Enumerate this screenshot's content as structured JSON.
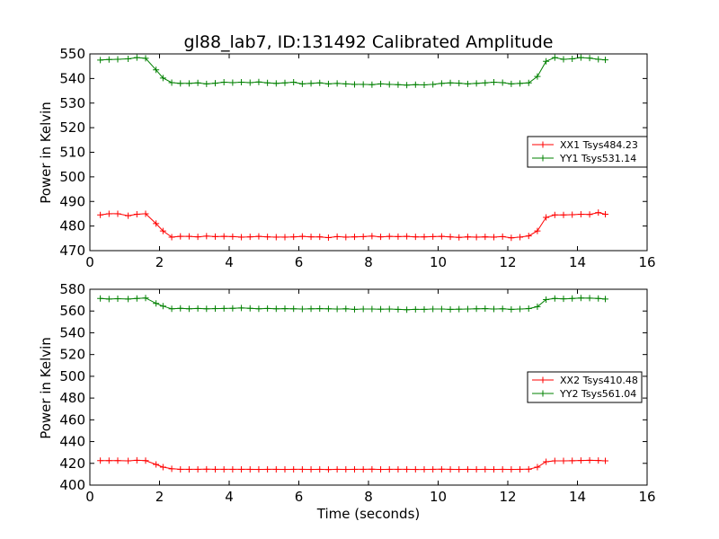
{
  "title": "gl88_lab7, ID:131492 Calibrated Amplitude",
  "chart_data": [
    {
      "type": "line",
      "title": "gl88_lab7, ID:131492 Calibrated Amplitude",
      "xlabel": "",
      "ylabel": "Power in Kelvin",
      "xlim": [
        0,
        16
      ],
      "ylim": [
        470,
        550
      ],
      "xticks": [
        0,
        2,
        4,
        6,
        8,
        10,
        12,
        14,
        16
      ],
      "yticks": [
        470,
        480,
        490,
        500,
        510,
        520,
        530,
        540,
        550
      ],
      "grid": false,
      "legend_position": "right",
      "series": [
        {
          "name": "XX1 Tsys484.23",
          "color": "#ff0000",
          "x": [
            0.3,
            0.55,
            0.8,
            1.1,
            1.35,
            1.6,
            1.9,
            2.1,
            2.35,
            2.6,
            2.85,
            3.1,
            3.35,
            3.6,
            3.85,
            4.1,
            4.35,
            4.6,
            4.85,
            5.1,
            5.35,
            5.6,
            5.85,
            6.1,
            6.35,
            6.6,
            6.85,
            7.1,
            7.35,
            7.6,
            7.85,
            8.1,
            8.35,
            8.6,
            8.85,
            9.1,
            9.35,
            9.6,
            9.85,
            10.1,
            10.35,
            10.6,
            10.85,
            11.1,
            11.35,
            11.6,
            11.85,
            12.1,
            12.35,
            12.6,
            12.85,
            13.1,
            13.35,
            13.6,
            13.85,
            14.1,
            14.35,
            14.6,
            14.8
          ],
          "values": [
            484.5,
            485.0,
            485.0,
            484.2,
            484.8,
            485.0,
            481.0,
            478.0,
            475.5,
            475.8,
            475.8,
            475.6,
            475.9,
            475.7,
            475.8,
            475.7,
            475.5,
            475.6,
            475.8,
            475.6,
            475.5,
            475.5,
            475.6,
            475.8,
            475.6,
            475.6,
            475.3,
            475.7,
            475.5,
            475.6,
            475.7,
            475.9,
            475.6,
            475.8,
            475.7,
            475.8,
            475.6,
            475.6,
            475.7,
            475.8,
            475.6,
            475.4,
            475.6,
            475.5,
            475.6,
            475.5,
            475.7,
            475.2,
            475.5,
            476.0,
            478.0,
            483.5,
            484.5,
            484.5,
            484.6,
            484.8,
            484.7,
            485.5,
            484.8
          ]
        },
        {
          "name": "YY1 Tsys531.14",
          "color": "#008000",
          "x": [
            0.3,
            0.55,
            0.8,
            1.1,
            1.35,
            1.6,
            1.9,
            2.1,
            2.35,
            2.6,
            2.85,
            3.1,
            3.35,
            3.6,
            3.85,
            4.1,
            4.35,
            4.6,
            4.85,
            5.1,
            5.35,
            5.6,
            5.85,
            6.1,
            6.35,
            6.6,
            6.85,
            7.1,
            7.35,
            7.6,
            7.85,
            8.1,
            8.35,
            8.6,
            8.85,
            9.1,
            9.35,
            9.6,
            9.85,
            10.1,
            10.35,
            10.6,
            10.85,
            11.1,
            11.35,
            11.6,
            11.85,
            12.1,
            12.35,
            12.6,
            12.85,
            13.1,
            13.35,
            13.6,
            13.85,
            14.1,
            14.35,
            14.6,
            14.8
          ],
          "values": [
            547.5,
            547.7,
            547.8,
            548.0,
            548.5,
            548.2,
            543.5,
            540.2,
            538.3,
            538.0,
            538.0,
            538.2,
            537.8,
            538.1,
            538.5,
            538.3,
            538.5,
            538.3,
            538.6,
            538.2,
            538.0,
            538.2,
            538.5,
            537.8,
            538.0,
            538.2,
            537.8,
            538.0,
            537.8,
            537.6,
            537.6,
            537.5,
            537.8,
            537.6,
            537.5,
            537.3,
            537.5,
            537.4,
            537.6,
            538.0,
            538.2,
            538.1,
            537.8,
            538.0,
            538.2,
            538.5,
            538.3,
            537.8,
            538.0,
            538.2,
            540.8,
            547.0,
            548.5,
            547.8,
            548.0,
            548.5,
            548.3,
            547.8,
            547.6
          ]
        }
      ]
    },
    {
      "type": "line",
      "title": "",
      "xlabel": "Time (seconds)",
      "ylabel": "Power in Kelvin",
      "xlim": [
        0,
        16
      ],
      "ylim": [
        400,
        580
      ],
      "xticks": [
        0,
        2,
        4,
        6,
        8,
        10,
        12,
        14,
        16
      ],
      "yticks": [
        400,
        420,
        440,
        460,
        480,
        500,
        520,
        540,
        560,
        580
      ],
      "grid": false,
      "legend_position": "right",
      "series": [
        {
          "name": "XX2 Tsys410.48",
          "color": "#ff0000",
          "x": [
            0.3,
            0.55,
            0.8,
            1.1,
            1.35,
            1.6,
            1.9,
            2.1,
            2.35,
            2.6,
            2.85,
            3.1,
            3.35,
            3.6,
            3.85,
            4.1,
            4.35,
            4.6,
            4.85,
            5.1,
            5.35,
            5.6,
            5.85,
            6.1,
            6.35,
            6.6,
            6.85,
            7.1,
            7.35,
            7.6,
            7.85,
            8.1,
            8.35,
            8.6,
            8.85,
            9.1,
            9.35,
            9.6,
            9.85,
            10.1,
            10.35,
            10.6,
            10.85,
            11.1,
            11.35,
            11.6,
            11.85,
            12.1,
            12.35,
            12.6,
            12.85,
            13.1,
            13.35,
            13.6,
            13.85,
            14.1,
            14.35,
            14.6,
            14.8
          ],
          "values": [
            422.5,
            422.5,
            422.5,
            422.3,
            422.8,
            422.5,
            419.0,
            416.5,
            415.0,
            414.5,
            414.5,
            414.5,
            414.6,
            414.5,
            414.5,
            414.5,
            414.5,
            414.5,
            414.4,
            414.5,
            414.5,
            414.4,
            414.5,
            414.5,
            414.4,
            414.5,
            414.3,
            414.5,
            414.4,
            414.5,
            414.5,
            414.6,
            414.4,
            414.5,
            414.5,
            414.5,
            414.4,
            414.4,
            414.5,
            414.6,
            414.5,
            414.4,
            414.5,
            414.4,
            414.5,
            414.4,
            414.5,
            414.4,
            414.5,
            414.6,
            416.5,
            421.5,
            422.3,
            422.3,
            422.4,
            422.6,
            422.8,
            422.6,
            422.3
          ]
        },
        {
          "name": "YY2 Tsys561.04",
          "color": "#008000",
          "x": [
            0.3,
            0.55,
            0.8,
            1.1,
            1.35,
            1.6,
            1.9,
            2.1,
            2.35,
            2.6,
            2.85,
            3.1,
            3.35,
            3.6,
            3.85,
            4.1,
            4.35,
            4.6,
            4.85,
            5.1,
            5.35,
            5.6,
            5.85,
            6.1,
            6.35,
            6.6,
            6.85,
            7.1,
            7.35,
            7.6,
            7.85,
            8.1,
            8.35,
            8.6,
            8.85,
            9.1,
            9.35,
            9.6,
            9.85,
            10.1,
            10.35,
            10.6,
            10.85,
            11.1,
            11.35,
            11.6,
            11.85,
            12.1,
            12.35,
            12.6,
            12.85,
            13.1,
            13.35,
            13.6,
            13.85,
            14.1,
            14.35,
            14.6,
            14.8
          ],
          "values": [
            571.5,
            571.0,
            571.3,
            571.0,
            571.5,
            572.0,
            567.0,
            564.5,
            562.0,
            562.5,
            562.0,
            562.3,
            562.0,
            562.2,
            562.3,
            562.5,
            562.8,
            562.5,
            562.0,
            562.3,
            562.0,
            562.2,
            562.0,
            561.8,
            562.0,
            562.2,
            562.0,
            561.8,
            562.0,
            561.5,
            561.8,
            561.8,
            561.7,
            561.8,
            561.5,
            561.2,
            561.5,
            561.5,
            561.8,
            561.8,
            561.5,
            561.7,
            561.8,
            562.0,
            562.2,
            561.8,
            562.0,
            561.5,
            561.8,
            562.2,
            564.0,
            570.5,
            571.5,
            571.2,
            571.5,
            572.0,
            571.8,
            571.5,
            571.0
          ]
        }
      ]
    }
  ]
}
